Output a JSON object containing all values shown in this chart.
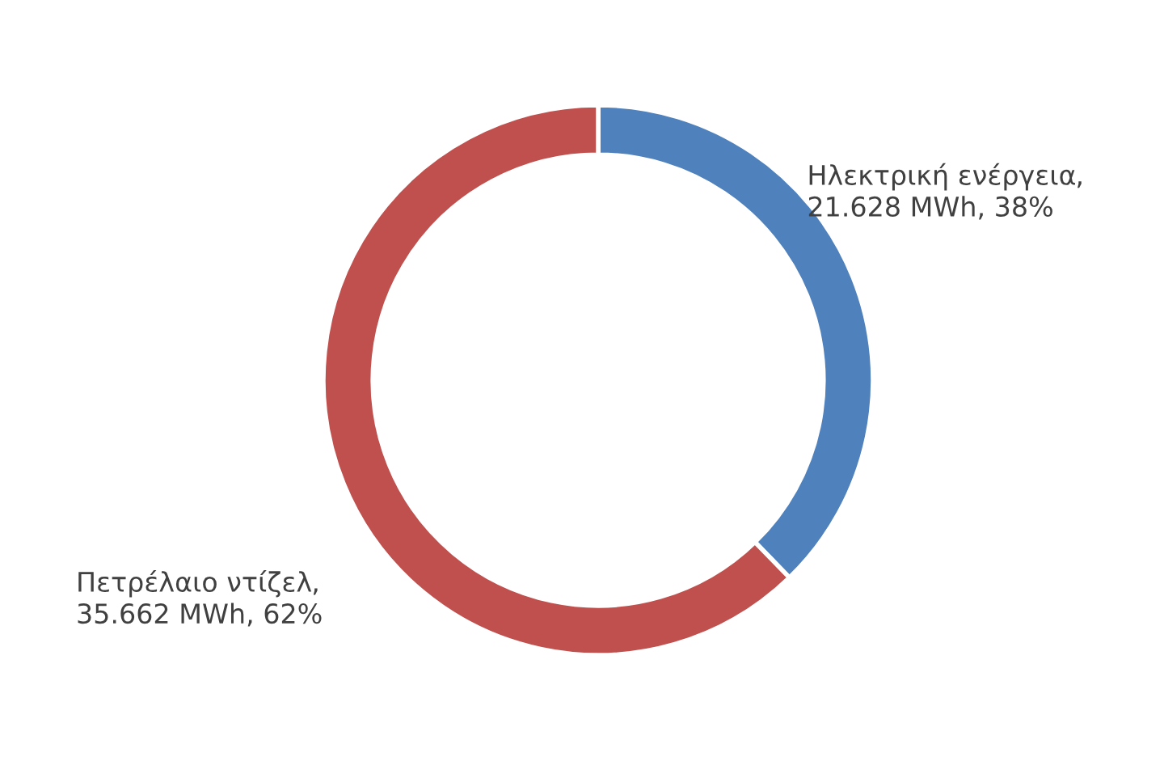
{
  "chart_data": {
    "type": "donut",
    "categories": [
      "Ηλεκτρική ενέργεια",
      "Πετρέλαιο ντίζελ"
    ],
    "values": [
      21628,
      35662
    ],
    "colors": [
      "#4f81bd",
      "#c0504d"
    ],
    "value_labels": [
      ", 21.628 MWh, 38%",
      ", 35.662 MWh, 62%"
    ]
  }
}
